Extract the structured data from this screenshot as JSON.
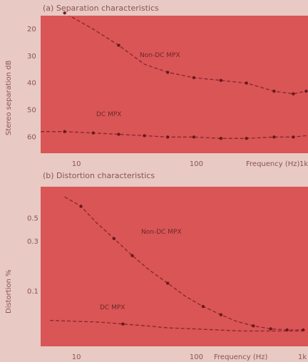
{
  "chart_data": [
    {
      "type": "line",
      "title": "(a) Separation characteristics",
      "xscale": "log",
      "xlim": [
        5,
        1000
      ],
      "xticks": [
        10,
        100
      ],
      "xtick_labels": [
        "10",
        "100"
      ],
      "xlabel": "Frequency (Hz)",
      "xlabel_cut": "1k",
      "ylabel": "Stereo separation dB",
      "yticks": [
        20,
        30,
        40,
        50,
        60
      ],
      "yticks_shown": [
        "20",
        "30",
        "40",
        "50",
        "60"
      ],
      "ylim": [
        15,
        66
      ],
      "grid": false,
      "series": [
        {
          "name": "Non-DC MPX",
          "x": [
            4,
            8,
            14,
            23,
            38,
            60,
            100,
            170,
            280,
            480,
            700,
            900
          ],
          "y": [
            5,
            14,
            20,
            26,
            33,
            36,
            38,
            39,
            40,
            43,
            44,
            43
          ],
          "markers": [
            0,
            1,
            3,
            5,
            6,
            7,
            8,
            9,
            10,
            11
          ]
        },
        {
          "name": "DC MPX",
          "x": [
            4,
            8,
            14,
            23,
            38,
            60,
            100,
            170,
            280,
            480,
            700,
            900
          ],
          "y": [
            58,
            58,
            58.5,
            59,
            59.5,
            60,
            60,
            60.5,
            60.5,
            60,
            60,
            59.5
          ],
          "markers": [
            1,
            2,
            3,
            4,
            5,
            6,
            7,
            8,
            9,
            10
          ]
        }
      ]
    },
    {
      "type": "line",
      "title": "(b) Distortion characteristics",
      "xscale": "log",
      "xlim": [
        5,
        1000
      ],
      "xticks": [
        10,
        100
      ],
      "xtick_labels": [
        "10",
        "100"
      ],
      "xlabel": "Frequency (Hz)",
      "xlabel_cut": "1k",
      "ylabel": "Distortion %",
      "yscale": "log",
      "yticks": [
        0.1,
        0.3,
        0.5
      ],
      "yticks_shown": [
        "0.1",
        "0.3",
        "0.5"
      ],
      "ylim": [
        0.03,
        1.0
      ],
      "grid": false,
      "series": [
        {
          "name": "Non-DC MPX",
          "x": [
            8,
            11,
            15,
            21,
            30,
            42,
            60,
            85,
            120,
            170,
            230,
            320,
            450,
            620,
            850
          ],
          "y": [
            0.8,
            0.65,
            0.45,
            0.32,
            0.22,
            0.16,
            0.12,
            0.09,
            0.072,
            0.06,
            0.052,
            0.047,
            0.044,
            0.043,
            0.043
          ],
          "markers": [
            1,
            3,
            4,
            6,
            8,
            9,
            11,
            12,
            13,
            14
          ]
        },
        {
          "name": "DC MPX",
          "x": [
            6,
            10,
            16,
            25,
            40,
            60,
            100,
            160,
            250,
            400,
            600,
            850
          ],
          "y": [
            0.053,
            0.052,
            0.051,
            0.049,
            0.047,
            0.045,
            0.044,
            0.043,
            0.042,
            0.042,
            0.042,
            0.042
          ],
          "markers": [
            3
          ]
        }
      ]
    }
  ]
}
